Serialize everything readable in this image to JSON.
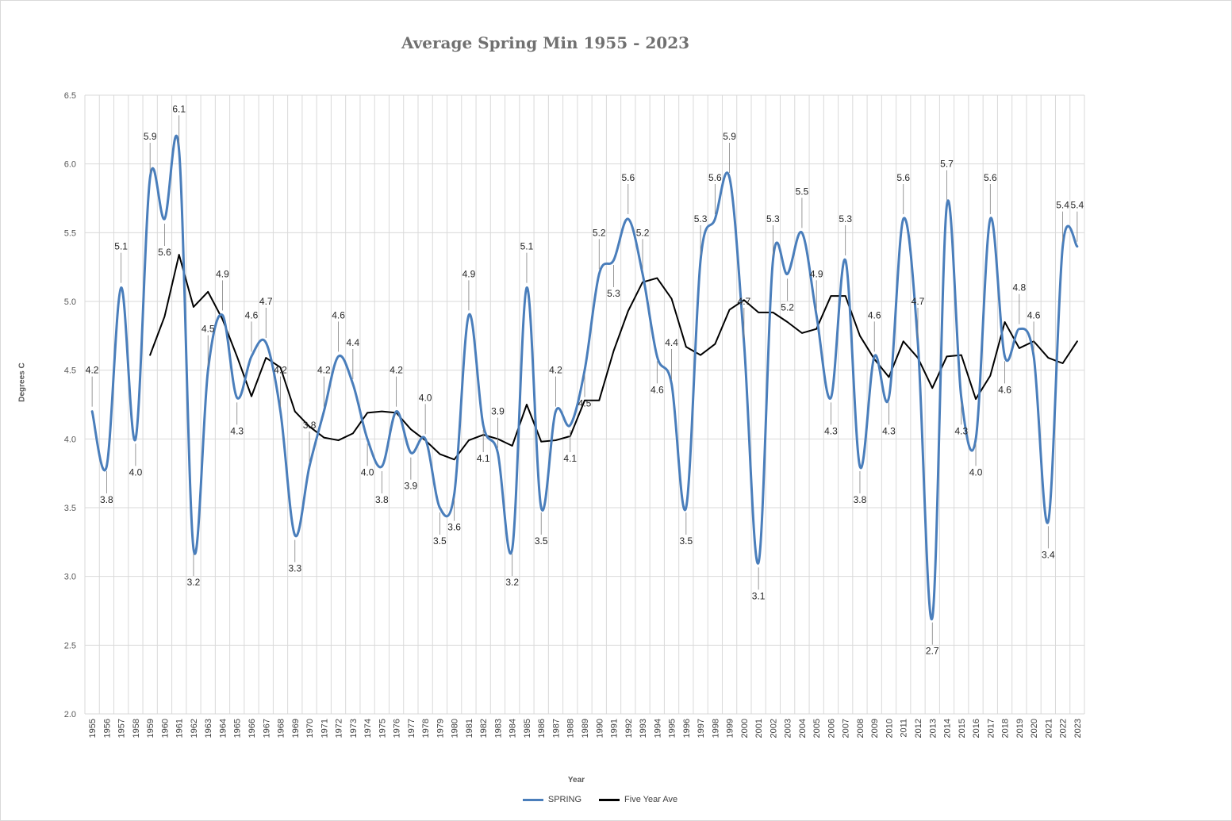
{
  "chart_data": {
    "type": "line",
    "title": "Average Spring Min 1955 - 2023",
    "xlabel": "Year",
    "ylabel": "Degrees C",
    "ylim": [
      2.0,
      6.5
    ],
    "yticks": [
      "2.0",
      "2.5",
      "3.0",
      "3.5",
      "4.0",
      "4.5",
      "5.0",
      "5.5",
      "6.0",
      "6.5"
    ],
    "grid": true,
    "legend_position": "bottom",
    "categories": [
      "1955",
      "1956",
      "1957",
      "1958",
      "1959",
      "1960",
      "1961",
      "1962",
      "1963",
      "1964",
      "1965",
      "1966",
      "1967",
      "1968",
      "1969",
      "1970",
      "1971",
      "1972",
      "1973",
      "1974",
      "1975",
      "1976",
      "1977",
      "1978",
      "1979",
      "1980",
      "1981",
      "1982",
      "1983",
      "1984",
      "1985",
      "1986",
      "1987",
      "1988",
      "1989",
      "1990",
      "1991",
      "1992",
      "1993",
      "1994",
      "1995",
      "1996",
      "1997",
      "1998",
      "1999",
      "2000",
      "2001",
      "2002",
      "2003",
      "2004",
      "2005",
      "2006",
      "2007",
      "2008",
      "2009",
      "2010",
      "2011",
      "2012",
      "2013",
      "2014",
      "2015",
      "2016",
      "2017",
      "2018",
      "2019",
      "2020",
      "2021",
      "2022",
      "2023"
    ],
    "series": [
      {
        "name": "SPRING",
        "color": "#4a7ebb",
        "smooth": true,
        "values": [
          4.2,
          3.8,
          5.1,
          4.0,
          5.9,
          5.6,
          6.1,
          3.2,
          4.5,
          4.9,
          4.3,
          4.6,
          4.7,
          4.2,
          3.3,
          3.8,
          4.2,
          4.6,
          4.4,
          4.0,
          3.8,
          4.2,
          3.9,
          4.0,
          3.5,
          3.6,
          4.9,
          4.1,
          3.9,
          3.2,
          5.1,
          3.5,
          4.2,
          4.1,
          4.5,
          5.2,
          5.3,
          5.6,
          5.2,
          4.6,
          4.4,
          3.5,
          5.3,
          5.6,
          5.9,
          4.7,
          3.1,
          5.3,
          5.2,
          5.5,
          4.9,
          4.3,
          5.3,
          3.8,
          4.6,
          4.3,
          5.6,
          4.7,
          2.7,
          5.7,
          4.3,
          4.0,
          5.6,
          4.6,
          4.8,
          4.6,
          3.4,
          5.4,
          5.4
        ],
        "data_labels": [
          "4.2",
          "3.8",
          "5.1",
          "4.0",
          "5.9",
          "5.6",
          "6.1",
          "3.2",
          "4.5",
          "4.9",
          "4.3",
          "4.6",
          "4.7",
          "4.2",
          "3.3",
          "3.8",
          "4.2",
          "4.6",
          "4.4",
          "4.0",
          "3.8",
          "4.2",
          "3.9",
          "4.0",
          "3.5",
          "3.6",
          "4.9",
          "4.1",
          "3.9",
          "3.2",
          "5.1",
          "3.5",
          "4.2",
          "4.1",
          "4.5",
          "5.2",
          "5.3",
          "5.6",
          "5.2",
          "4.6",
          "4.4",
          "3.5",
          "5.3",
          "5.6",
          "5.9",
          "4.7",
          "3.1",
          "5.3",
          "5.2",
          "5.5",
          "4.9",
          "4.3",
          "5.3",
          "3.8",
          "4.6",
          "4.3",
          "5.6",
          "4.7",
          "2.7",
          "5.7",
          "4.3",
          "4.0",
          "5.6",
          "4.6",
          "4.8",
          "4.6",
          "3.4",
          "5.4",
          "5.4"
        ]
      },
      {
        "name": "Five Year Ave",
        "color": "#000000",
        "smooth": false,
        "values": [
          null,
          null,
          null,
          null,
          4.61,
          4.89,
          5.34,
          4.96,
          5.07,
          4.87,
          4.6,
          4.31,
          4.59,
          4.52,
          4.2,
          4.09,
          4.01,
          3.99,
          4.04,
          4.19,
          4.2,
          4.19,
          4.07,
          3.99,
          3.89,
          3.85,
          3.99,
          4.03,
          4.0,
          3.95,
          4.25,
          3.98,
          3.99,
          4.02,
          4.28,
          4.28,
          4.64,
          4.93,
          5.14,
          5.17,
          5.02,
          4.67,
          4.61,
          4.69,
          4.94,
          5.01,
          4.92,
          4.92,
          4.85,
          4.77,
          4.8,
          5.04,
          5.04,
          4.75,
          4.58,
          4.45,
          4.71,
          4.59,
          4.37,
          4.6,
          4.61,
          4.29,
          4.46,
          4.85,
          4.66,
          4.71,
          4.59,
          4.55,
          4.71
        ]
      }
    ]
  }
}
